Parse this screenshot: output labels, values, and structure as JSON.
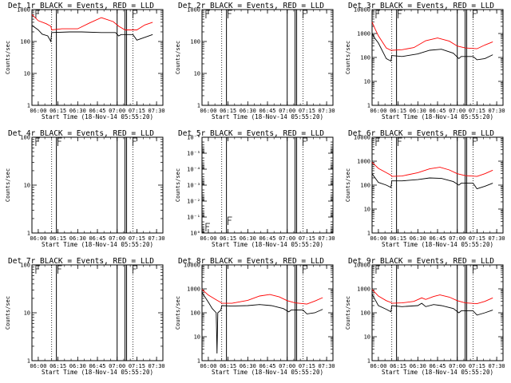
{
  "colors": {
    "events": "#000000",
    "lld": "#ff0000",
    "axis": "#000000",
    "background": "#ffffff"
  },
  "x_ticks": [
    "06:00",
    "06:15",
    "06:30",
    "06:45",
    "07:00",
    "07:15",
    "07:30"
  ],
  "x_axis_label": "Start Time (18-Nov-14 05:55:20)",
  "y_axis_label": "Counts/sec",
  "chart_data": [
    {
      "type": "line",
      "title": "Det 1r BLACK = Events, RED = LLD",
      "ylog": true,
      "ylim": [
        1,
        1000
      ],
      "yticks": [
        1,
        10,
        100,
        1000
      ],
      "ytick_labels": [
        "1",
        "10",
        "100",
        "1000"
      ],
      "series": [
        {
          "name": "Events",
          "points": [
            [
              5.92,
              320
            ],
            [
              6.0,
              230
            ],
            [
              6.05,
              170
            ],
            [
              6.12,
              150
            ],
            [
              6.16,
              100
            ],
            [
              6.17,
              190
            ],
            [
              6.4,
              200
            ],
            [
              6.55,
              200
            ],
            [
              6.8,
              190
            ],
            [
              6.98,
              190
            ],
            [
              7.02,
              150
            ],
            [
              7.05,
              165
            ],
            [
              7.2,
              165
            ],
            [
              7.25,
              110
            ],
            [
              7.35,
              135
            ],
            [
              7.45,
              165
            ]
          ]
        },
        {
          "name": "LLD",
          "points": [
            [
              5.92,
              700
            ],
            [
              6.0,
              450
            ],
            [
              6.1,
              360
            ],
            [
              6.16,
              300
            ],
            [
              6.17,
              230
            ],
            [
              6.3,
              250
            ],
            [
              6.5,
              250
            ],
            [
              6.65,
              380
            ],
            [
              6.8,
              560
            ],
            [
              6.95,
              420
            ],
            [
              7.02,
              300
            ],
            [
              7.1,
              230
            ],
            [
              7.25,
              230
            ],
            [
              7.35,
              330
            ],
            [
              7.45,
              400
            ]
          ]
        }
      ],
      "vlines_dotted": [
        6.17,
        7.2
      ],
      "vlines_solid": [
        6.23,
        7.0,
        7.1,
        7.12
      ],
      "flags": [
        [
          5.97,
          1000
        ],
        [
          7.2,
          1000
        ]
      ]
    },
    {
      "type": "line",
      "title": "Det 2r BLACK = Events, RED = LLD",
      "ylog": true,
      "ylim": [
        1,
        1000
      ],
      "yticks": [
        1,
        10,
        100,
        1000
      ],
      "ytick_labels": [
        "1",
        "10",
        "100",
        "1000"
      ],
      "series": [],
      "vlines_dotted": [
        6.17,
        7.2
      ],
      "vlines_solid": [
        6.23,
        7.0,
        7.1,
        7.12
      ],
      "flags": [
        [
          5.97,
          1000
        ],
        [
          6.25,
          1000
        ],
        [
          7.2,
          1000
        ]
      ]
    },
    {
      "type": "line",
      "title": "Det 3r BLACK = Events, RED = LLD",
      "ylog": true,
      "ylim": [
        1,
        10000
      ],
      "yticks": [
        1,
        10,
        100,
        1000,
        10000
      ],
      "ytick_labels": [
        "1",
        "10",
        "100",
        "1000",
        "10000"
      ],
      "series": [
        {
          "name": "Events",
          "points": [
            [
              5.92,
              1000
            ],
            [
              5.96,
              600
            ],
            [
              6.0,
              400
            ],
            [
              6.1,
              90
            ],
            [
              6.16,
              70
            ],
            [
              6.17,
              120
            ],
            [
              6.3,
              110
            ],
            [
              6.5,
              140
            ],
            [
              6.65,
              200
            ],
            [
              6.8,
              220
            ],
            [
              6.95,
              150
            ],
            [
              7.02,
              90
            ],
            [
              7.05,
              110
            ],
            [
              7.2,
              110
            ],
            [
              7.25,
              80
            ],
            [
              7.35,
              90
            ],
            [
              7.45,
              130
            ]
          ]
        },
        {
          "name": "LLD",
          "points": [
            [
              5.92,
              3000
            ],
            [
              5.96,
              1500
            ],
            [
              6.0,
              800
            ],
            [
              6.1,
              250
            ],
            [
              6.16,
              200
            ],
            [
              6.17,
              200
            ],
            [
              6.3,
              210
            ],
            [
              6.45,
              260
            ],
            [
              6.6,
              500
            ],
            [
              6.75,
              650
            ],
            [
              6.9,
              480
            ],
            [
              7.0,
              300
            ],
            [
              7.1,
              250
            ],
            [
              7.25,
              230
            ],
            [
              7.35,
              330
            ],
            [
              7.45,
              450
            ]
          ]
        }
      ],
      "vlines_dotted": [
        6.17,
        7.2
      ],
      "vlines_solid": [
        6.23,
        7.0,
        7.1,
        7.12
      ],
      "flags": [
        [
          5.97,
          10000
        ],
        [
          6.25,
          10000
        ],
        [
          7.2,
          10000
        ]
      ]
    },
    {
      "type": "line",
      "title": "Det 4r BLACK = Events, RED = LLD",
      "ylog": true,
      "ylim": [
        1,
        100
      ],
      "yticks": [
        1,
        10,
        100
      ],
      "ytick_labels": [
        "1",
        "10",
        "100"
      ],
      "series": [],
      "vlines_dotted": [
        6.17,
        7.2
      ],
      "vlines_solid": [
        6.23,
        7.0,
        7.1,
        7.12
      ],
      "flags": [
        [
          5.97,
          100
        ],
        [
          6.25,
          100
        ],
        [
          7.2,
          100
        ]
      ]
    },
    {
      "type": "line",
      "title": "Det 5r BLACK = Events, RED = LLD",
      "ylog": true,
      "ylim": [
        1,
        1e-06
      ],
      "yreversed": true,
      "yticks": [
        1e-06,
        1e-05,
        0.0001,
        0.001,
        0.01,
        0.1,
        1
      ],
      "ytick_labels": [
        "10⁻⁶",
        "10⁻⁵",
        "10⁻⁴",
        "10⁻³",
        "10⁻²",
        "10⁻¹",
        "10⁰"
      ],
      "series": [],
      "vlines_dotted": [
        6.17,
        7.2
      ],
      "vlines_solid": [
        6.23,
        7.0,
        7.1,
        7.12
      ],
      "flags": [
        [
          5.97,
          0.5
        ],
        [
          6.25,
          0.1
        ],
        [
          7.2,
          1e-06
        ]
      ]
    },
    {
      "type": "line",
      "title": "Det 6r BLACK = Events, RED = LLD",
      "ylog": true,
      "ylim": [
        1,
        10000
      ],
      "yticks": [
        1,
        10,
        100,
        1000,
        10000
      ],
      "ytick_labels": [
        "1",
        "10",
        "100",
        "1000",
        "10000"
      ],
      "series": [
        {
          "name": "Events",
          "points": [
            [
              5.92,
              300
            ],
            [
              6.0,
              130
            ],
            [
              6.1,
              100
            ],
            [
              6.16,
              80
            ],
            [
              6.17,
              150
            ],
            [
              6.3,
              150
            ],
            [
              6.5,
              170
            ],
            [
              6.65,
              200
            ],
            [
              6.8,
              190
            ],
            [
              6.95,
              140
            ],
            [
              7.02,
              100
            ],
            [
              7.05,
              120
            ],
            [
              7.2,
              120
            ],
            [
              7.25,
              70
            ],
            [
              7.35,
              90
            ],
            [
              7.45,
              120
            ]
          ]
        },
        {
          "name": "LLD",
          "points": [
            [
              5.92,
              900
            ],
            [
              6.0,
              500
            ],
            [
              6.1,
              330
            ],
            [
              6.16,
              260
            ],
            [
              6.17,
              230
            ],
            [
              6.3,
              240
            ],
            [
              6.5,
              330
            ],
            [
              6.65,
              480
            ],
            [
              6.78,
              560
            ],
            [
              6.9,
              430
            ],
            [
              7.0,
              300
            ],
            [
              7.1,
              250
            ],
            [
              7.25,
              230
            ],
            [
              7.35,
              300
            ],
            [
              7.45,
              420
            ]
          ]
        }
      ],
      "vlines_dotted": [
        6.17,
        7.2
      ],
      "vlines_solid": [
        6.23,
        7.0,
        7.1,
        7.12
      ],
      "flags": [
        [
          5.97,
          10000
        ],
        [
          6.25,
          10000
        ],
        [
          7.2,
          10000
        ]
      ]
    },
    {
      "type": "line",
      "title": "Det 7r BLACK = Events, RED = LLD",
      "ylog": true,
      "ylim": [
        1,
        100
      ],
      "yticks": [
        1,
        10,
        100
      ],
      "ytick_labels": [
        "1",
        "10",
        "100"
      ],
      "series": [],
      "vlines_dotted": [
        6.17,
        7.2
      ],
      "vlines_solid": [
        6.23,
        7.0,
        7.1,
        7.12
      ],
      "flags": [
        [
          5.97,
          100
        ],
        [
          6.25,
          100
        ],
        [
          7.2,
          100
        ]
      ]
    },
    {
      "type": "line",
      "title": "Det 8r BLACK = Events, RED = LLD",
      "ylog": true,
      "ylim": [
        1,
        10000
      ],
      "yticks": [
        1,
        10,
        100,
        1000,
        10000
      ],
      "ytick_labels": [
        "1",
        "10",
        "100",
        "1000",
        "10000"
      ],
      "series": [
        {
          "name": "Events",
          "points": [
            [
              5.92,
              700
            ],
            [
              6.0,
              280
            ],
            [
              6.05,
              150
            ],
            [
              6.1,
              100
            ],
            [
              6.11,
              2
            ],
            [
              6.12,
              100
            ],
            [
              6.16,
              130
            ],
            [
              6.17,
              200
            ],
            [
              6.3,
              190
            ],
            [
              6.5,
              200
            ],
            [
              6.65,
              220
            ],
            [
              6.8,
              200
            ],
            [
              6.95,
              150
            ],
            [
              7.02,
              110
            ],
            [
              7.05,
              130
            ],
            [
              7.2,
              130
            ],
            [
              7.25,
              90
            ],
            [
              7.35,
              100
            ],
            [
              7.45,
              140
            ]
          ]
        },
        {
          "name": "LLD",
          "points": [
            [
              5.92,
              950
            ],
            [
              6.0,
              550
            ],
            [
              6.1,
              350
            ],
            [
              6.16,
              270
            ],
            [
              6.17,
              250
            ],
            [
              6.3,
              250
            ],
            [
              6.5,
              330
            ],
            [
              6.65,
              500
            ],
            [
              6.78,
              580
            ],
            [
              6.9,
              460
            ],
            [
              7.0,
              320
            ],
            [
              7.1,
              260
            ],
            [
              7.25,
              230
            ],
            [
              7.35,
              310
            ],
            [
              7.45,
              430
            ]
          ]
        }
      ],
      "vlines_dotted": [
        6.17,
        7.2
      ],
      "vlines_solid": [
        6.23,
        7.0,
        7.1,
        7.12
      ],
      "flags": [
        [
          7.2,
          10000
        ]
      ]
    },
    {
      "type": "line",
      "title": "Det 9r BLACK = Events, RED = LLD",
      "ylog": true,
      "ylim": [
        1,
        10000
      ],
      "yticks": [
        1,
        10,
        100,
        1000,
        10000
      ],
      "ytick_labels": [
        "1",
        "10",
        "100",
        "1000",
        "10000"
      ],
      "series": [
        {
          "name": "Events",
          "points": [
            [
              5.92,
              600
            ],
            [
              6.0,
              200
            ],
            [
              6.1,
              140
            ],
            [
              6.16,
              110
            ],
            [
              6.17,
              200
            ],
            [
              6.3,
              180
            ],
            [
              6.5,
              200
            ],
            [
              6.55,
              250
            ],
            [
              6.6,
              180
            ],
            [
              6.7,
              220
            ],
            [
              6.8,
              200
            ],
            [
              6.95,
              150
            ],
            [
              7.02,
              100
            ],
            [
              7.05,
              120
            ],
            [
              7.2,
              120
            ],
            [
              7.25,
              80
            ],
            [
              7.35,
              100
            ],
            [
              7.45,
              130
            ]
          ]
        },
        {
          "name": "LLD",
          "points": [
            [
              5.92,
              950
            ],
            [
              6.0,
              500
            ],
            [
              6.1,
              320
            ],
            [
              6.16,
              270
            ],
            [
              6.17,
              250
            ],
            [
              6.3,
              260
            ],
            [
              6.45,
              300
            ],
            [
              6.55,
              420
            ],
            [
              6.6,
              360
            ],
            [
              6.7,
              480
            ],
            [
              6.78,
              560
            ],
            [
              6.9,
              450
            ],
            [
              7.0,
              320
            ],
            [
              7.1,
              260
            ],
            [
              7.25,
              240
            ],
            [
              7.35,
              300
            ],
            [
              7.45,
              420
            ]
          ]
        }
      ],
      "vlines_dotted": [
        6.17,
        7.2
      ],
      "vlines_solid": [
        6.23,
        7.0,
        7.1,
        7.12
      ],
      "flags": [
        [
          5.97,
          10000
        ],
        [
          7.2,
          10000
        ]
      ]
    }
  ]
}
